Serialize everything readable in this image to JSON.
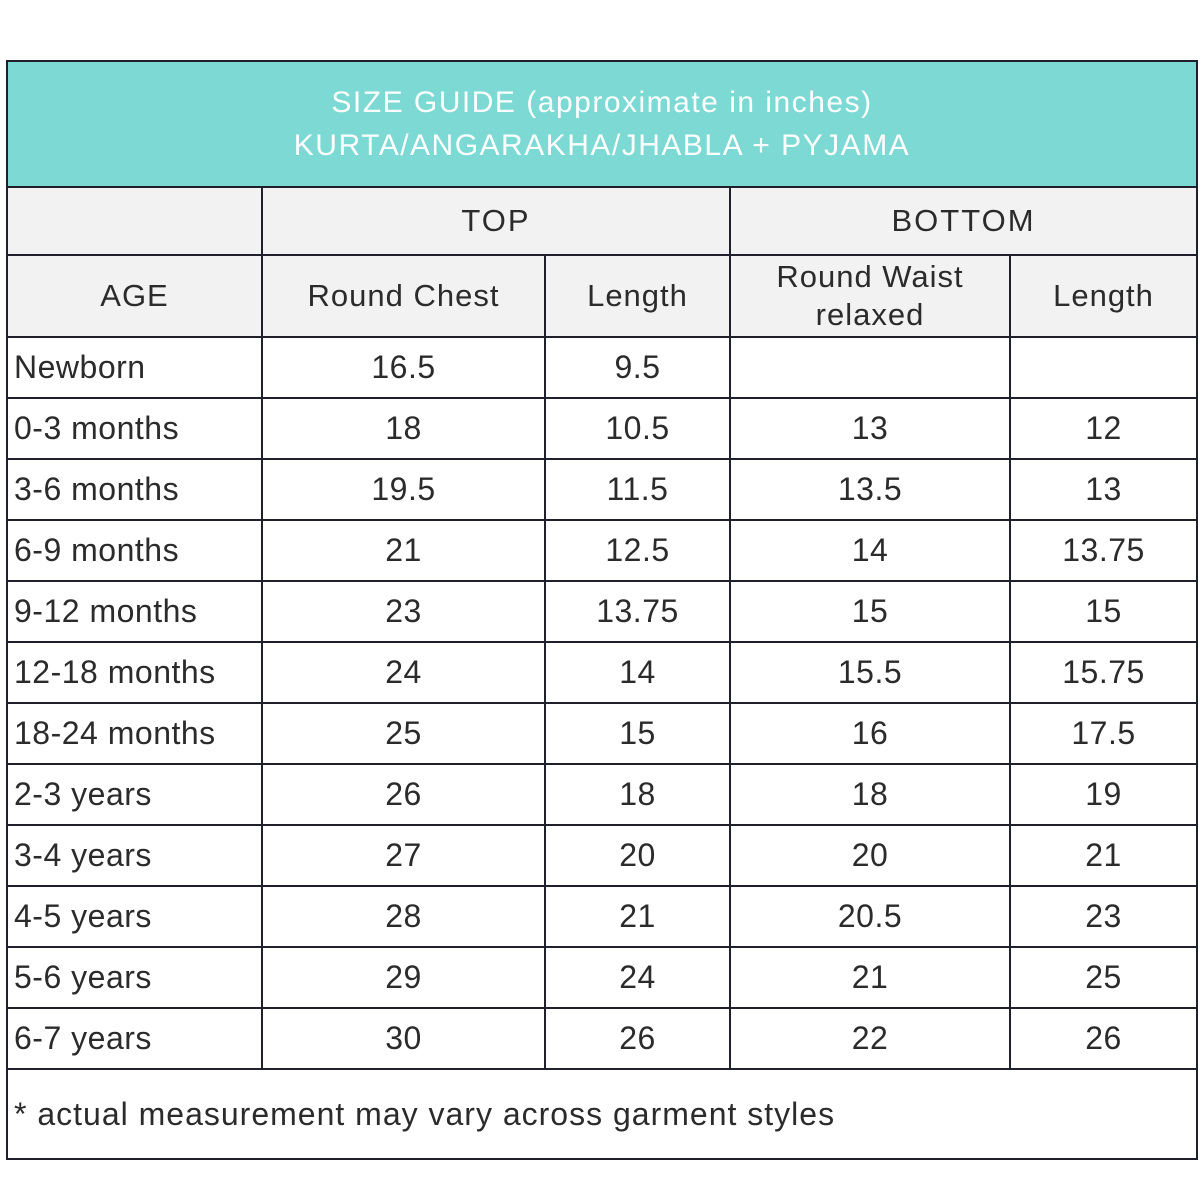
{
  "title": {
    "line1": "SIZE GUIDE (approximate in inches)",
    "line2": "KURTA/ANGARAKHA/JHABLA + PYJAMA"
  },
  "colors": {
    "title_band_bg": "#7cd9d3",
    "title_text": "#ffffff",
    "header_bg": "#f2f2f2",
    "border": "#20202c",
    "text": "#2b2b2b"
  },
  "table": {
    "group_headers": {
      "top": "TOP",
      "bottom": "BOTTOM"
    },
    "column_headers": [
      "AGE",
      "Round Chest",
      "Length",
      "Round Waist relaxed",
      "Length"
    ],
    "rows": [
      {
        "age": "Newborn",
        "values": [
          "16.5",
          "9.5",
          "",
          ""
        ]
      },
      {
        "age": "0-3 months",
        "values": [
          "18",
          "10.5",
          "13",
          "12"
        ]
      },
      {
        "age": "3-6 months",
        "values": [
          "19.5",
          "11.5",
          "13.5",
          "13"
        ]
      },
      {
        "age": "6-9 months",
        "values": [
          "21",
          "12.5",
          "14",
          "13.75"
        ]
      },
      {
        "age": "9-12 months",
        "values": [
          "23",
          "13.75",
          "15",
          "15"
        ]
      },
      {
        "age": "12-18 months",
        "values": [
          "24",
          "14",
          "15.5",
          "15.75"
        ]
      },
      {
        "age": "18-24 months",
        "values": [
          "25",
          "15",
          "16",
          "17.5"
        ]
      },
      {
        "age": "2-3 years",
        "values": [
          "26",
          "18",
          "18",
          "19"
        ]
      },
      {
        "age": "3-4 years",
        "values": [
          "27",
          "20",
          "20",
          "21"
        ]
      },
      {
        "age": "4-5 years",
        "values": [
          "28",
          "21",
          "20.5",
          "23"
        ]
      },
      {
        "age": "5-6 years",
        "values": [
          "29",
          "24",
          "21",
          "25"
        ]
      },
      {
        "age": "6-7 years",
        "values": [
          "30",
          "26",
          "22",
          "26"
        ]
      }
    ],
    "footnote": "* actual measurement may vary across garment styles"
  }
}
